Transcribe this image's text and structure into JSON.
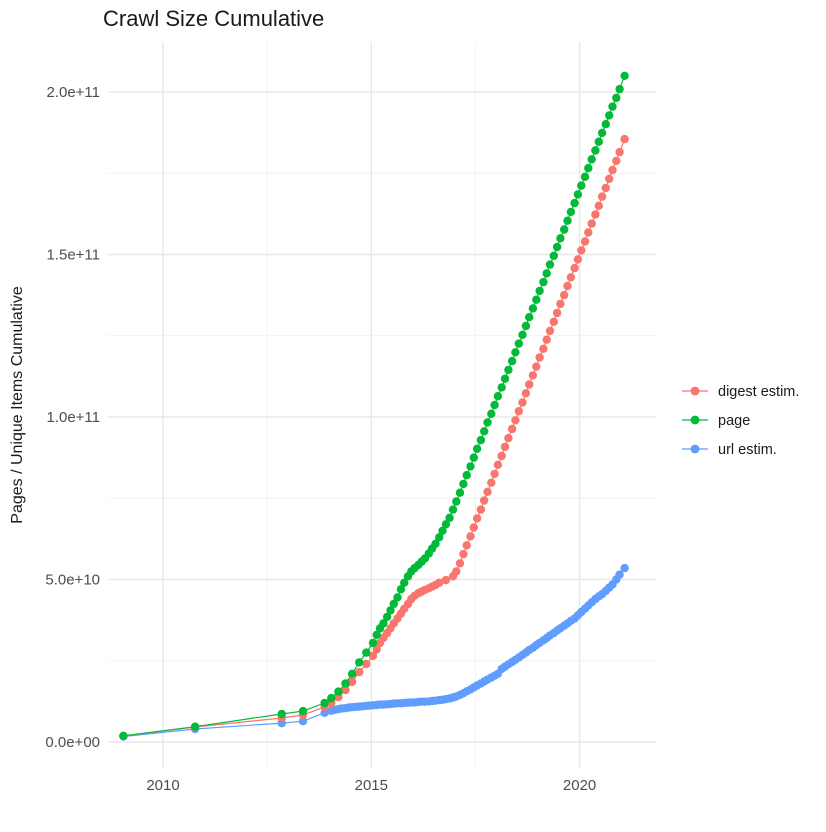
{
  "title": "Crawl Size Cumulative",
  "axes": {
    "y_label": "Pages / Unique Items Cumulative",
    "x_label": "",
    "y_tick_labels": [
      "0.0e+00",
      "5.0e+10",
      "1.0e+11",
      "1.5e+11",
      "2.0e+11"
    ],
    "x_tick_labels": [
      "2010",
      "2015",
      "2020"
    ]
  },
  "legend": {
    "position": "right",
    "items": [
      {
        "label": "digest estim.",
        "color": "#F8766D"
      },
      {
        "label": "page",
        "color": "#00BA38"
      },
      {
        "label": "url estim.",
        "color": "#619CFF"
      }
    ]
  },
  "colors": {
    "digest": "#F8766D",
    "page": "#00BA38",
    "url": "#619CFF",
    "grid_major": "#e8e8e8",
    "grid_minor": "#f2f2f2",
    "tick_text": "#4d4d4d",
    "background": "#ffffff"
  },
  "chart_data": {
    "type": "line",
    "title": "Crawl Size Cumulative",
    "xlabel": "",
    "ylabel": "Pages / Unique Items Cumulative",
    "unit": "values in 1e9 (billions) of pages / unique items",
    "grid": true,
    "legend_position": "right",
    "xlim": [
      2008.7,
      2021.8
    ],
    "ylim_1e9": [
      0,
      215
    ],
    "x_ticks": {
      "values": [
        2010,
        2015,
        2020
      ],
      "labels": [
        "2010",
        "2015",
        "2020"
      ],
      "minor": [
        2012.5,
        2017.5
      ]
    },
    "y_ticks": {
      "values_1e9": [
        0,
        50,
        100,
        150,
        200
      ],
      "labels": [
        "0.0e+00",
        "5.0e+10",
        "1.0e+11",
        "1.5e+11",
        "2.0e+11"
      ],
      "minor_1e9": [
        25,
        75,
        125,
        175
      ]
    },
    "draw_order": [
      2,
      0,
      1
    ],
    "series": [
      {
        "name": "digest estim.",
        "color": "#F8766D",
        "points": [
          [
            2009.05,
            1.85
          ],
          [
            2010.77,
            4.6
          ],
          [
            2012.85,
            7.4
          ],
          [
            2013.36,
            8.3
          ],
          [
            2013.88,
            10.8
          ],
          [
            2014.04,
            12.0
          ],
          [
            2014.21,
            13.8
          ],
          [
            2014.38,
            16.0
          ],
          [
            2014.54,
            18.5
          ],
          [
            2014.71,
            21.5
          ],
          [
            2014.88,
            24.0
          ],
          [
            2015.04,
            26.5
          ],
          [
            2015.13,
            28.5
          ],
          [
            2015.21,
            30.5
          ],
          [
            2015.29,
            32.0
          ],
          [
            2015.38,
            33.5
          ],
          [
            2015.46,
            35.0
          ],
          [
            2015.54,
            36.5
          ],
          [
            2015.63,
            38.0
          ],
          [
            2015.71,
            39.5
          ],
          [
            2015.79,
            41.0
          ],
          [
            2015.88,
            42.5
          ],
          [
            2015.96,
            44.0
          ],
          [
            2016.04,
            45.0
          ],
          [
            2016.13,
            45.8
          ],
          [
            2016.21,
            46.3
          ],
          [
            2016.29,
            46.8
          ],
          [
            2016.38,
            47.3
          ],
          [
            2016.46,
            47.8
          ],
          [
            2016.54,
            48.3
          ],
          [
            2016.63,
            49.0
          ],
          [
            2016.79,
            49.8
          ],
          [
            2016.96,
            51.0
          ],
          [
            2017.04,
            52.5
          ],
          [
            2017.13,
            55.0
          ],
          [
            2017.21,
            57.8
          ],
          [
            2017.29,
            60.5
          ],
          [
            2017.38,
            63.3
          ],
          [
            2017.46,
            66.0
          ],
          [
            2017.54,
            68.8
          ],
          [
            2017.63,
            71.5
          ],
          [
            2017.71,
            74.3
          ],
          [
            2017.79,
            77.0
          ],
          [
            2017.88,
            79.8
          ],
          [
            2017.96,
            82.5
          ],
          [
            2018.04,
            85.3
          ],
          [
            2018.13,
            88.0
          ],
          [
            2018.21,
            90.8
          ],
          [
            2018.29,
            93.5
          ],
          [
            2018.38,
            96.3
          ],
          [
            2018.46,
            99.0
          ],
          [
            2018.54,
            101.8
          ],
          [
            2018.63,
            104.5
          ],
          [
            2018.71,
            107.3
          ],
          [
            2018.79,
            110.0
          ],
          [
            2018.88,
            112.8
          ],
          [
            2018.96,
            115.5
          ],
          [
            2019.04,
            118.3
          ],
          [
            2019.13,
            121.0
          ],
          [
            2019.21,
            123.8
          ],
          [
            2019.29,
            126.5
          ],
          [
            2019.38,
            129.3
          ],
          [
            2019.46,
            132.0
          ],
          [
            2019.54,
            134.8
          ],
          [
            2019.63,
            137.5
          ],
          [
            2019.71,
            140.3
          ],
          [
            2019.79,
            143.0
          ],
          [
            2019.88,
            145.8
          ],
          [
            2019.96,
            148.5
          ],
          [
            2020.04,
            151.3
          ],
          [
            2020.13,
            154.0
          ],
          [
            2020.21,
            156.8
          ],
          [
            2020.29,
            159.5
          ],
          [
            2020.38,
            162.3
          ],
          [
            2020.46,
            165.0
          ],
          [
            2020.54,
            167.8
          ],
          [
            2020.63,
            170.5
          ],
          [
            2020.71,
            173.3
          ],
          [
            2020.79,
            176.0
          ],
          [
            2020.88,
            178.8
          ],
          [
            2020.96,
            181.5
          ],
          [
            2021.08,
            185.5
          ]
        ]
      },
      {
        "name": "page",
        "color": "#00BA38",
        "points": [
          [
            2009.05,
            1.9
          ],
          [
            2010.77,
            4.7
          ],
          [
            2012.85,
            8.6
          ],
          [
            2013.36,
            9.5
          ],
          [
            2013.88,
            12.0
          ],
          [
            2014.04,
            13.5
          ],
          [
            2014.21,
            15.5
          ],
          [
            2014.38,
            18.0
          ],
          [
            2014.54,
            21.0
          ],
          [
            2014.71,
            24.5
          ],
          [
            2014.88,
            27.5
          ],
          [
            2015.04,
            30.5
          ],
          [
            2015.13,
            33.0
          ],
          [
            2015.21,
            35.0
          ],
          [
            2015.29,
            36.5
          ],
          [
            2015.38,
            38.5
          ],
          [
            2015.46,
            40.5
          ],
          [
            2015.54,
            42.5
          ],
          [
            2015.63,
            44.5
          ],
          [
            2015.71,
            47.0
          ],
          [
            2015.79,
            49.0
          ],
          [
            2015.88,
            51.0
          ],
          [
            2015.96,
            52.5
          ],
          [
            2016.04,
            53.5
          ],
          [
            2016.13,
            54.5
          ],
          [
            2016.21,
            55.5
          ],
          [
            2016.29,
            56.5
          ],
          [
            2016.38,
            58.0
          ],
          [
            2016.46,
            59.5
          ],
          [
            2016.54,
            61.0
          ],
          [
            2016.63,
            63.0
          ],
          [
            2016.71,
            65.0
          ],
          [
            2016.79,
            67.0
          ],
          [
            2016.88,
            69.0
          ],
          [
            2016.96,
            71.5
          ],
          [
            2017.04,
            74.0
          ],
          [
            2017.13,
            76.7
          ],
          [
            2017.21,
            79.4
          ],
          [
            2017.29,
            82.1
          ],
          [
            2017.38,
            84.8
          ],
          [
            2017.46,
            87.5
          ],
          [
            2017.54,
            90.2
          ],
          [
            2017.63,
            92.9
          ],
          [
            2017.71,
            95.6
          ],
          [
            2017.79,
            98.3
          ],
          [
            2017.88,
            101.0
          ],
          [
            2017.96,
            103.7
          ],
          [
            2018.04,
            106.4
          ],
          [
            2018.13,
            109.1
          ],
          [
            2018.21,
            111.8
          ],
          [
            2018.29,
            114.5
          ],
          [
            2018.38,
            117.2
          ],
          [
            2018.46,
            119.9
          ],
          [
            2018.54,
            122.6
          ],
          [
            2018.63,
            125.3
          ],
          [
            2018.71,
            128.0
          ],
          [
            2018.79,
            130.7
          ],
          [
            2018.88,
            133.4
          ],
          [
            2018.96,
            136.1
          ],
          [
            2019.04,
            138.8
          ],
          [
            2019.13,
            141.5
          ],
          [
            2019.21,
            144.2
          ],
          [
            2019.29,
            146.9
          ],
          [
            2019.38,
            149.6
          ],
          [
            2019.46,
            152.3
          ],
          [
            2019.54,
            155.0
          ],
          [
            2019.63,
            157.7
          ],
          [
            2019.71,
            160.4
          ],
          [
            2019.79,
            163.1
          ],
          [
            2019.88,
            165.8
          ],
          [
            2019.96,
            168.5
          ],
          [
            2020.04,
            171.2
          ],
          [
            2020.13,
            173.9
          ],
          [
            2020.21,
            176.6
          ],
          [
            2020.29,
            179.3
          ],
          [
            2020.38,
            182.0
          ],
          [
            2020.46,
            184.7
          ],
          [
            2020.54,
            187.4
          ],
          [
            2020.63,
            190.1
          ],
          [
            2020.71,
            192.8
          ],
          [
            2020.79,
            195.5
          ],
          [
            2020.88,
            198.2
          ],
          [
            2020.96,
            200.9
          ],
          [
            2021.08,
            205.0
          ]
        ]
      },
      {
        "name": "url estim.",
        "color": "#619CFF",
        "points": [
          [
            2009.05,
            1.7
          ],
          [
            2010.77,
            4.0
          ],
          [
            2012.85,
            5.8
          ],
          [
            2013.36,
            6.4
          ],
          [
            2013.88,
            9.0
          ],
          [
            2014.04,
            9.6
          ],
          [
            2014.13,
            9.9
          ],
          [
            2014.21,
            10.1
          ],
          [
            2014.29,
            10.3
          ],
          [
            2014.38,
            10.4
          ],
          [
            2014.46,
            10.6
          ],
          [
            2014.54,
            10.7
          ],
          [
            2014.63,
            10.8
          ],
          [
            2014.71,
            10.9
          ],
          [
            2014.79,
            11.0
          ],
          [
            2014.88,
            11.1
          ],
          [
            2014.96,
            11.2
          ],
          [
            2015.04,
            11.3
          ],
          [
            2015.13,
            11.4
          ],
          [
            2015.21,
            11.5
          ],
          [
            2015.29,
            11.5
          ],
          [
            2015.38,
            11.6
          ],
          [
            2015.46,
            11.7
          ],
          [
            2015.54,
            11.8
          ],
          [
            2015.63,
            11.9
          ],
          [
            2015.71,
            11.9
          ],
          [
            2015.79,
            12.0
          ],
          [
            2015.88,
            12.1
          ],
          [
            2015.96,
            12.2
          ],
          [
            2016.04,
            12.2
          ],
          [
            2016.13,
            12.3
          ],
          [
            2016.21,
            12.4
          ],
          [
            2016.29,
            12.4
          ],
          [
            2016.38,
            12.5
          ],
          [
            2016.46,
            12.6
          ],
          [
            2016.54,
            12.7
          ],
          [
            2016.63,
            12.9
          ],
          [
            2016.71,
            13.0
          ],
          [
            2016.79,
            13.2
          ],
          [
            2016.88,
            13.4
          ],
          [
            2016.96,
            13.7
          ],
          [
            2017.04,
            14.0
          ],
          [
            2017.13,
            14.5
          ],
          [
            2017.21,
            15.0
          ],
          [
            2017.29,
            15.6
          ],
          [
            2017.38,
            16.2
          ],
          [
            2017.46,
            16.8
          ],
          [
            2017.54,
            17.4
          ],
          [
            2017.63,
            18.0
          ],
          [
            2017.71,
            18.6
          ],
          [
            2017.79,
            19.2
          ],
          [
            2017.88,
            19.8
          ],
          [
            2017.96,
            20.4
          ],
          [
            2018.04,
            21.0
          ],
          [
            2018.13,
            22.5
          ],
          [
            2018.21,
            23.2
          ],
          [
            2018.29,
            23.9
          ],
          [
            2018.38,
            24.6
          ],
          [
            2018.46,
            25.3
          ],
          [
            2018.54,
            26.0
          ],
          [
            2018.63,
            26.8
          ],
          [
            2018.71,
            27.5
          ],
          [
            2018.79,
            28.3
          ],
          [
            2018.88,
            29.0
          ],
          [
            2018.96,
            29.8
          ],
          [
            2019.04,
            30.5
          ],
          [
            2019.13,
            31.3
          ],
          [
            2019.21,
            32.0
          ],
          [
            2019.29,
            32.8
          ],
          [
            2019.38,
            33.5
          ],
          [
            2019.46,
            34.3
          ],
          [
            2019.54,
            35.0
          ],
          [
            2019.63,
            35.8
          ],
          [
            2019.71,
            36.5
          ],
          [
            2019.79,
            37.3
          ],
          [
            2019.88,
            38.0
          ],
          [
            2019.96,
            39.0
          ],
          [
            2020.04,
            40.0
          ],
          [
            2020.13,
            41.0
          ],
          [
            2020.21,
            42.0
          ],
          [
            2020.29,
            43.0
          ],
          [
            2020.38,
            44.0
          ],
          [
            2020.46,
            44.8
          ],
          [
            2020.54,
            45.5
          ],
          [
            2020.63,
            46.5
          ],
          [
            2020.71,
            47.5
          ],
          [
            2020.79,
            48.5
          ],
          [
            2020.88,
            50.0
          ],
          [
            2020.96,
            51.5
          ],
          [
            2021.08,
            53.5
          ]
        ]
      }
    ]
  }
}
